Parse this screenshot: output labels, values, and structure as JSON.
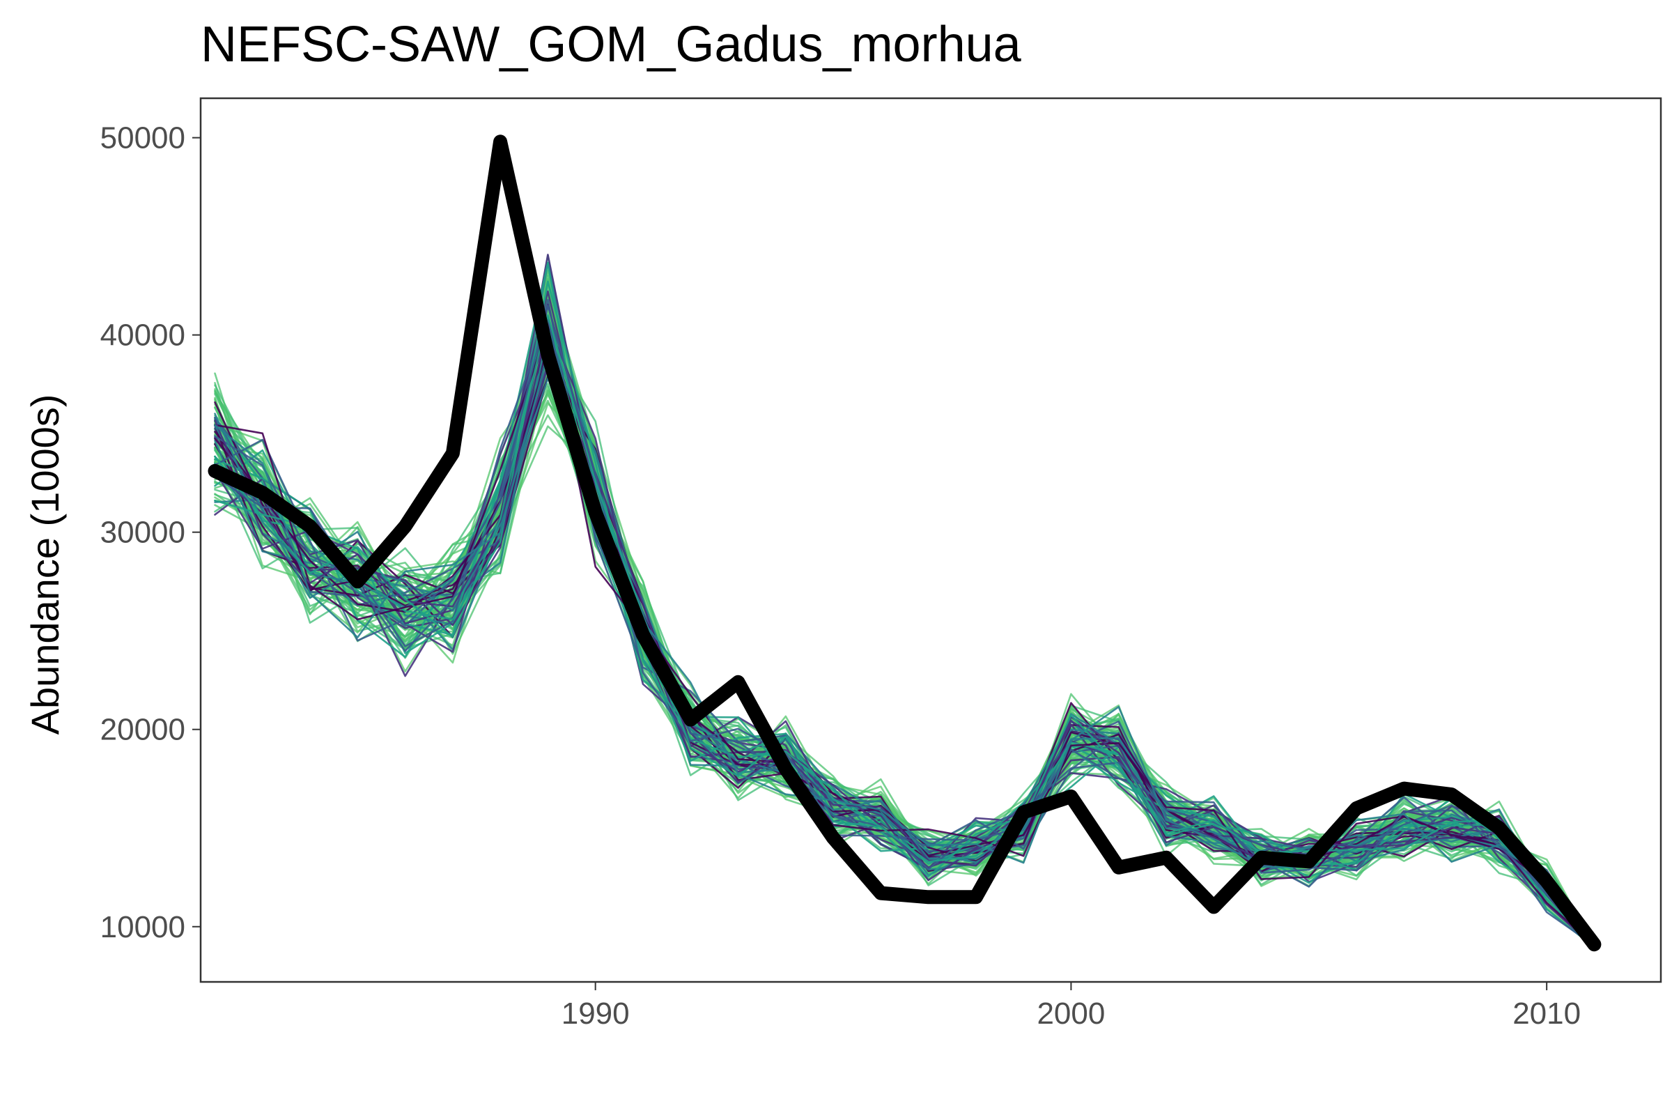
{
  "chart_data": {
    "type": "line",
    "title": "NEFSC-SAW_GOM_Gadus_morhua",
    "xlabel": "",
    "ylabel": "Abundance (1000s)",
    "xlim": [
      1981.7,
      2012.4
    ],
    "ylim": [
      7200,
      52000
    ],
    "x_ticks": [
      1990,
      2000,
      2010
    ],
    "y_ticks": [
      10000,
      20000,
      30000,
      40000,
      50000
    ],
    "grid": false,
    "legend": "none",
    "colors": {
      "observed": "#000000",
      "simulation_palette": [
        "#440154",
        "#46337e",
        "#365c8d",
        "#277f8e",
        "#1fa187",
        "#4ac16d",
        "#3ebc74",
        "#52c569"
      ]
    },
    "x": [
      1982,
      1983,
      1984,
      1985,
      1986,
      1987,
      1988,
      1989,
      1990,
      1991,
      1992,
      1993,
      1994,
      1995,
      1996,
      1997,
      1998,
      1999,
      2000,
      2001,
      2002,
      2003,
      2004,
      2005,
      2006,
      2007,
      2008,
      2009,
      2010,
      2011
    ],
    "series": [
      {
        "role": "observed",
        "values": [
          33100,
          32000,
          30300,
          27500,
          30300,
          34000,
          49800,
          39000,
          31000,
          24800,
          20500,
          22400,
          18000,
          14500,
          11700,
          11500,
          11500,
          15800,
          16600,
          13000,
          13500,
          11000,
          13500,
          13300,
          16000,
          17000,
          16700,
          15000,
          12300,
          9100
        ]
      },
      {
        "role": "simulated-ensemble-center",
        "values": [
          34500,
          31500,
          28500,
          27500,
          26000,
          26500,
          31000,
          40000,
          32000,
          25000,
          20000,
          18500,
          18500,
          16000,
          15500,
          13500,
          14000,
          15000,
          19500,
          19000,
          15500,
          15000,
          13500,
          13500,
          14000,
          15000,
          15000,
          14500,
          12000,
          9000
        ]
      }
    ]
  }
}
